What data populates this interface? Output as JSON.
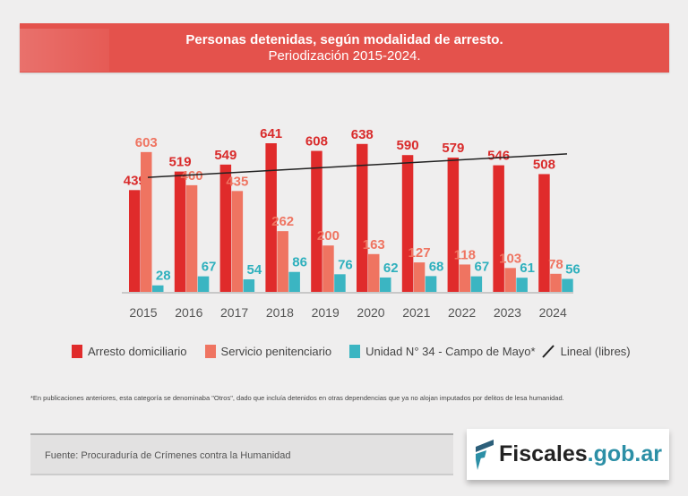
{
  "header": {
    "title": "Personas detenidas, según modalidad de arresto.",
    "subtitle": "Periodización 2015-2024."
  },
  "chart_data": {
    "type": "bar",
    "categories": [
      "2015",
      "2016",
      "2017",
      "2018",
      "2019",
      "2020",
      "2021",
      "2022",
      "2023",
      "2024"
    ],
    "series": [
      {
        "name": "Arresto domiciliario",
        "color": "#e02b2b",
        "values": [
          439,
          519,
          549,
          641,
          608,
          638,
          590,
          579,
          546,
          508
        ]
      },
      {
        "name": "Servicio penitenciario",
        "color": "#ef7461",
        "values": [
          603,
          460,
          435,
          262,
          200,
          163,
          127,
          118,
          103,
          78
        ]
      },
      {
        "name": "Unidad N° 34 - Campo de Mayo*",
        "color": "#3bb5c2",
        "values": [
          28,
          67,
          54,
          86,
          76,
          62,
          68,
          67,
          61,
          56
        ]
      }
    ],
    "trendline": {
      "name": "Lineal (libres)",
      "color": "#222222",
      "start": 494,
      "end": 595
    },
    "ylim": [
      0,
      680
    ],
    "grid": false,
    "legend": "bottom"
  },
  "legend": [
    "Arresto domiciliario",
    "Servicio penitenciario",
    "Unidad N° 34 - Campo de Mayo*",
    "Lineal (libres)"
  ],
  "footnote": "*En publicaciones anteriores, esta categoría se denominaba \"Otros\", dado que incluía detenidos en otras dependencias que ya no alojan imputados por delitos de lesa humanidad.",
  "source": "Fuente: Procuraduría de Crímenes contra la Humanidad",
  "logo": {
    "main": "Fiscales",
    "domain": ".gob.ar"
  }
}
